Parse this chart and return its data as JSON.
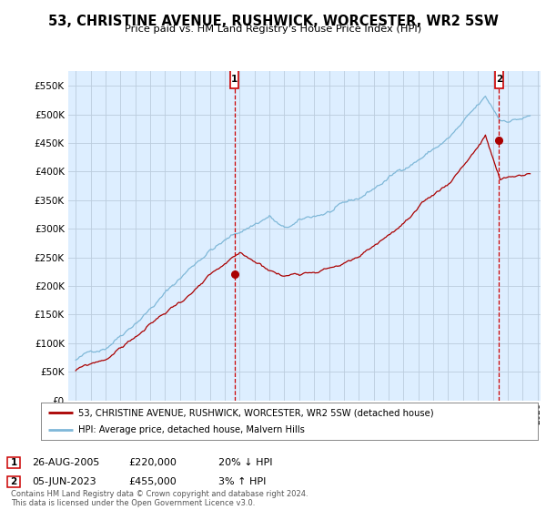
{
  "title": "53, CHRISTINE AVENUE, RUSHWICK, WORCESTER, WR2 5SW",
  "subtitle": "Price paid vs. HM Land Registry's House Price Index (HPI)",
  "legend_line1": "53, CHRISTINE AVENUE, RUSHWICK, WORCESTER, WR2 5SW (detached house)",
  "legend_line2": "HPI: Average price, detached house, Malvern Hills",
  "annotation1_date": "26-AUG-2005",
  "annotation1_price": "£220,000",
  "annotation1_hpi": "20% ↓ HPI",
  "annotation2_date": "05-JUN-2023",
  "annotation2_price": "£455,000",
  "annotation2_hpi": "3% ↑ HPI",
  "footnote": "Contains HM Land Registry data © Crown copyright and database right 2024.\nThis data is licensed under the Open Government Licence v3.0.",
  "hpi_color": "#7fb8d8",
  "price_color": "#aa0000",
  "annotation_color": "#cc0000",
  "background_color": "#ffffff",
  "chart_bg_color": "#ddeeff",
  "grid_color": "#bbccdd",
  "ylim": [
    0,
    575000
  ],
  "yticks": [
    0,
    50000,
    100000,
    150000,
    200000,
    250000,
    300000,
    350000,
    400000,
    450000,
    500000,
    550000
  ],
  "xlim_start": 1994.5,
  "xlim_end": 2026.2,
  "anno1_x": 2005.65,
  "anno1_y": 220000,
  "anno2_x": 2023.42,
  "anno2_y": 455000
}
